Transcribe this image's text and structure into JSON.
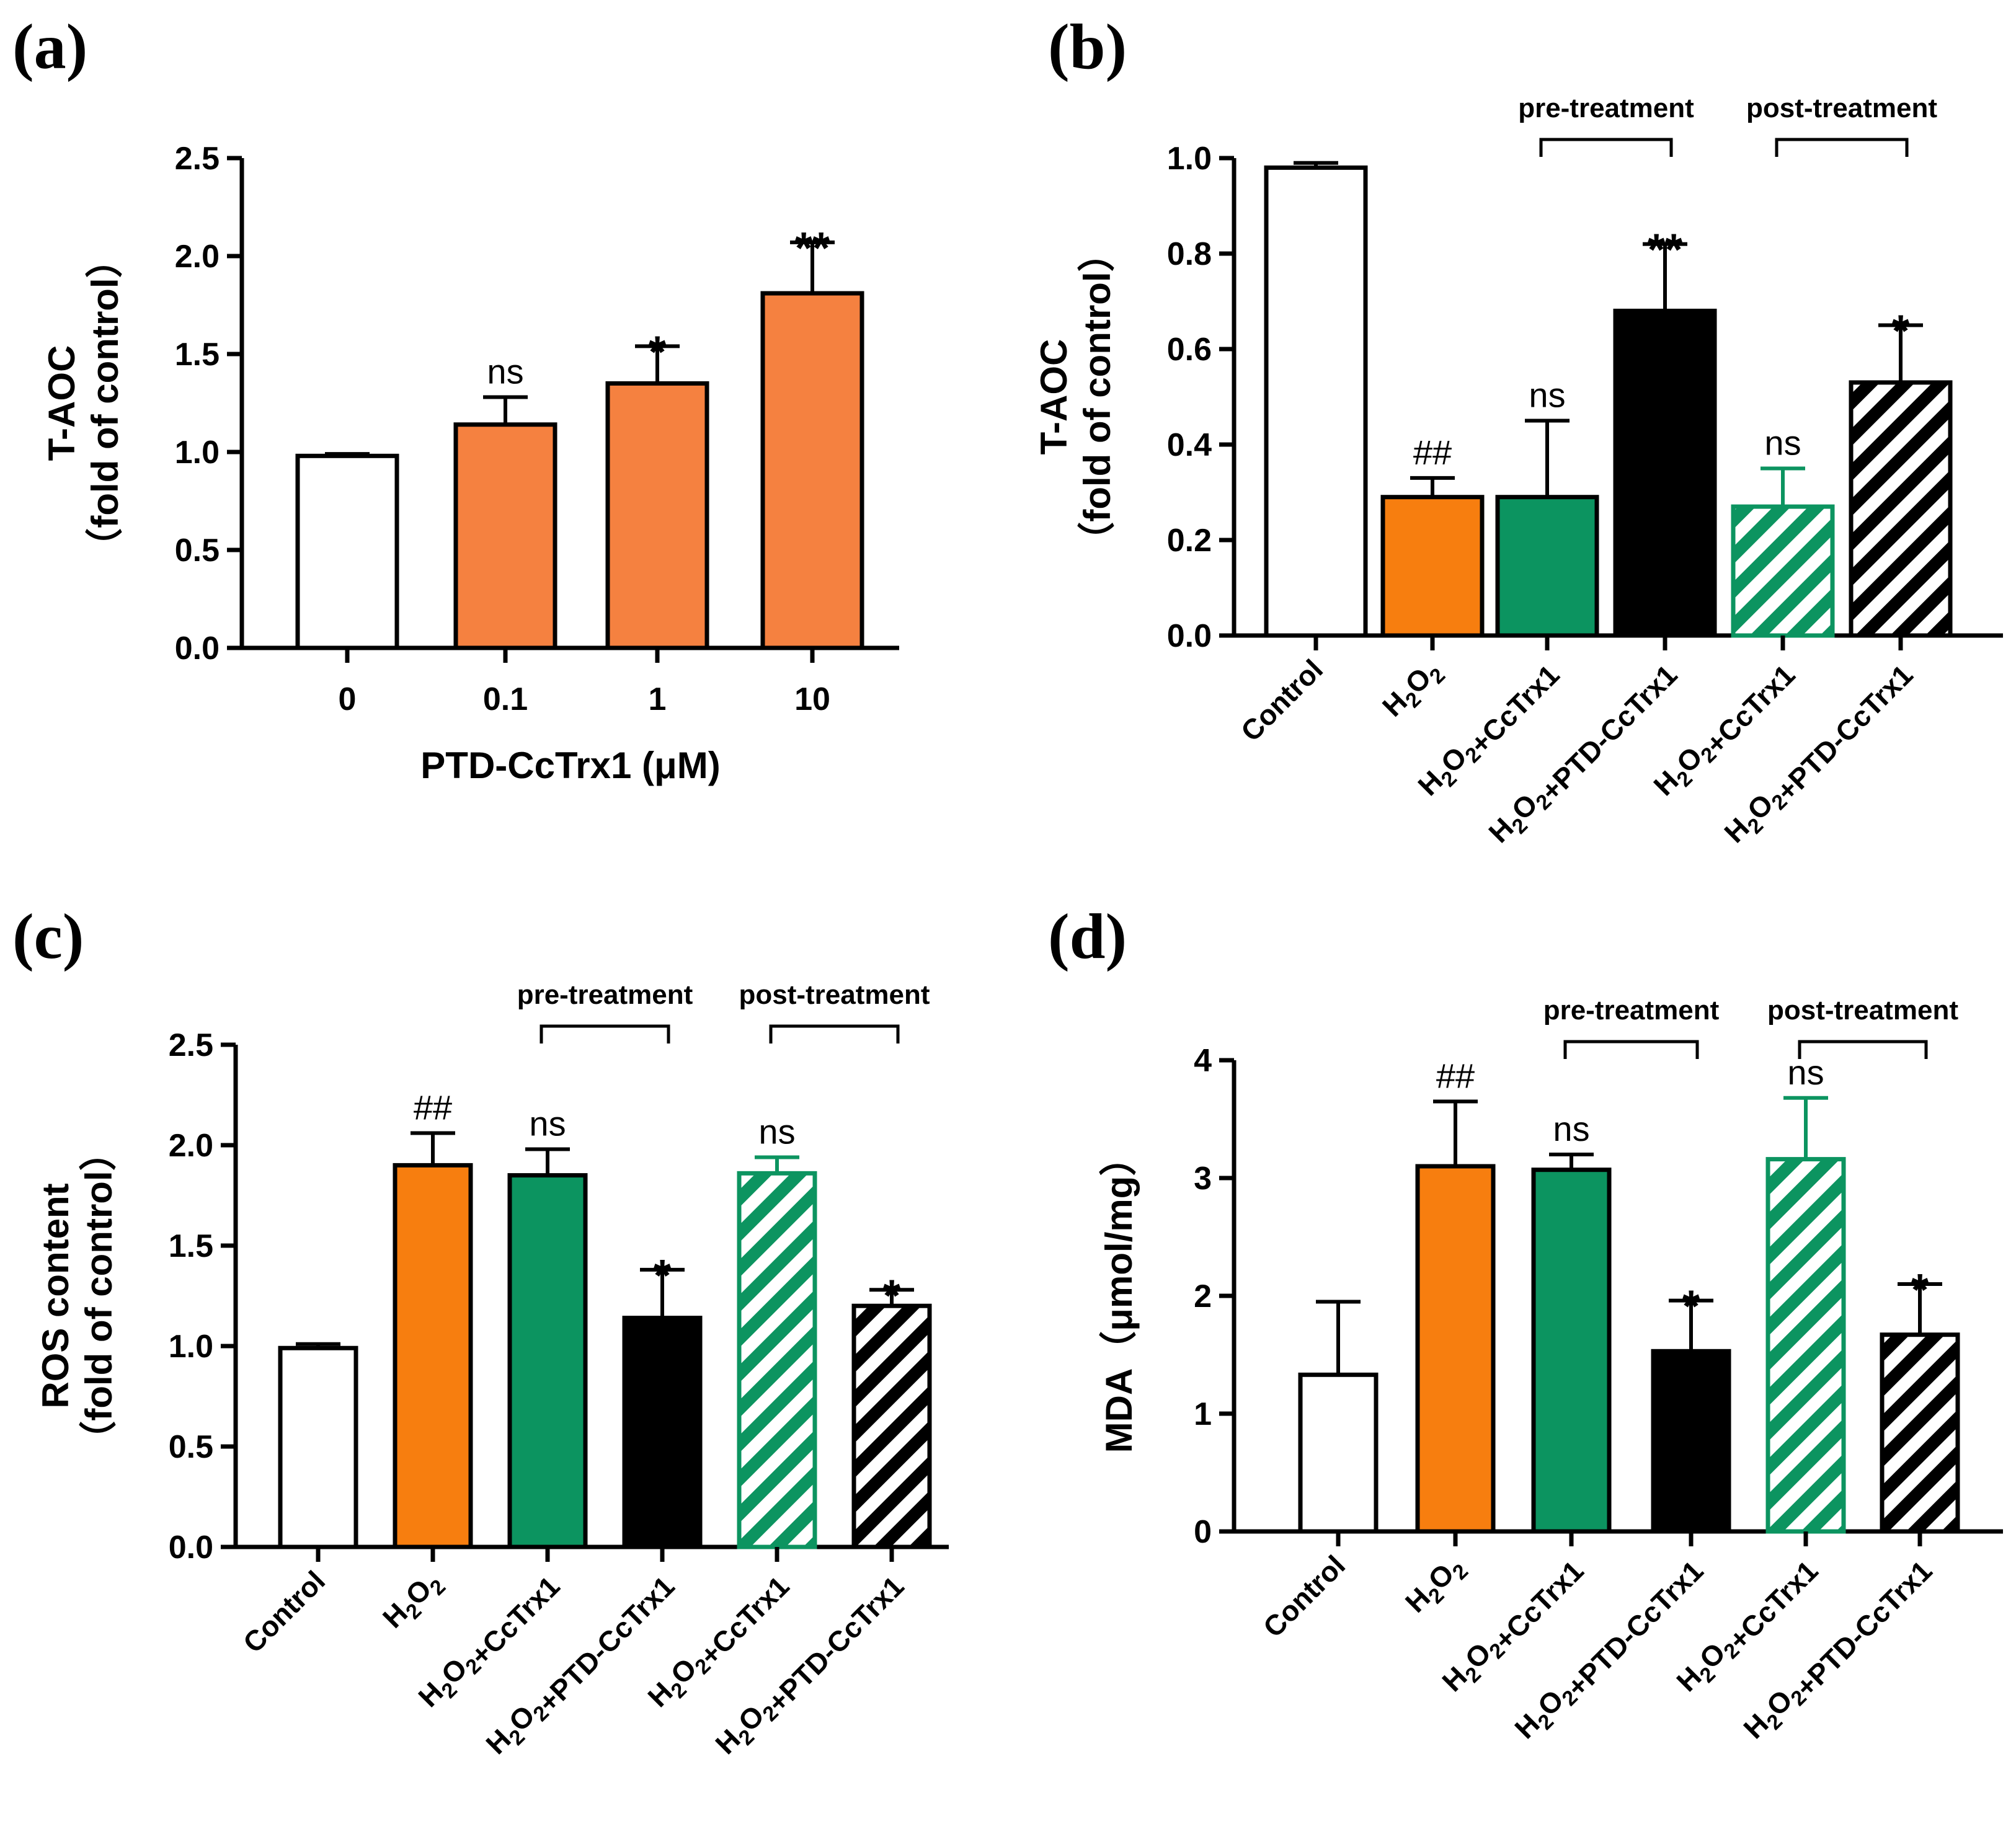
{
  "colors": {
    "orange_a": "#F58140",
    "orange": "#F77E0F",
    "green": "#0C9460",
    "black": "#000000",
    "white": "#FFFFFF"
  },
  "chart_data": [
    {
      "id": "a",
      "panel_label": "(a)",
      "type": "bar",
      "ylabel_line1": "T-AOC",
      "ylabel_line2": "（fold of control）",
      "xlabel": "PTD-CcTrx1 (μM)",
      "ylim": [
        0,
        2.5
      ],
      "yticks": [
        "0.0",
        "0.5",
        "1.0",
        "1.5",
        "2.0",
        "2.5"
      ],
      "categories": [
        "0",
        "0.1",
        "1",
        "10"
      ],
      "values": [
        0.98,
        1.14,
        1.35,
        1.81
      ],
      "errors": [
        0.01,
        0.14,
        0.19,
        0.26
      ],
      "fills": [
        "white",
        "orange_a",
        "orange_a",
        "orange_a"
      ],
      "significance": [
        "",
        "ns",
        "*",
        "**"
      ],
      "groups": []
    },
    {
      "id": "b",
      "panel_label": "(b)",
      "type": "bar",
      "ylabel_line1": "T-AOC",
      "ylabel_line2": "（fold of control）",
      "xlabel": "",
      "ylim": [
        0,
        1.0
      ],
      "yticks": [
        "0.0",
        "0.2",
        "0.4",
        "0.6",
        "0.8",
        "1.0"
      ],
      "categories": [
        "Control",
        "H2O2",
        "H2O2+CcTrx1",
        "H2O2+PTD-CcTrx1",
        "H2O2+CcTrx1",
        "H2O2+PTD-CcTrx1"
      ],
      "values": [
        0.98,
        0.29,
        0.29,
        0.68,
        0.27,
        0.53
      ],
      "errors": [
        0.01,
        0.04,
        0.16,
        0.14,
        0.08,
        0.12
      ],
      "fills": [
        "white",
        "orange",
        "green",
        "black",
        "green-hatch",
        "black-hatch"
      ],
      "significance": [
        "",
        "##",
        "ns",
        "**",
        "ns",
        "*"
      ],
      "groups": [
        {
          "label": "pre-treatment",
          "from": 2,
          "to": 3
        },
        {
          "label": "post-treatment",
          "from": 4,
          "to": 5
        }
      ]
    },
    {
      "id": "c",
      "panel_label": "(c)",
      "type": "bar",
      "ylabel_line1": "ROS content",
      "ylabel_line2": "（fold of control）",
      "xlabel": "",
      "ylim": [
        0,
        2.5
      ],
      "yticks": [
        "0.0",
        "0.5",
        "1.0",
        "1.5",
        "2.0",
        "2.5"
      ],
      "categories": [
        "Control",
        "H2O2",
        "H2O2+CcTrx1",
        "H2O2+PTD-CcTrx1",
        "H2O2+CcTrx1",
        "H2O2+PTD-CcTrx1"
      ],
      "values": [
        0.99,
        1.9,
        1.85,
        1.14,
        1.86,
        1.2
      ],
      "errors": [
        0.02,
        0.16,
        0.13,
        0.24,
        0.08,
        0.08
      ],
      "fills": [
        "white",
        "orange",
        "green",
        "black",
        "green-hatch",
        "black-hatch"
      ],
      "significance": [
        "",
        "##",
        "ns",
        "*",
        "ns",
        "*"
      ],
      "groups": [
        {
          "label": "pre-treatment",
          "from": 2,
          "to": 3
        },
        {
          "label": "post-treatment",
          "from": 4,
          "to": 5
        }
      ]
    },
    {
      "id": "d",
      "panel_label": "(d)",
      "type": "bar",
      "ylabel_line1": "MDA（μmol/mg）",
      "ylabel_line2": "",
      "xlabel": "",
      "ylim": [
        0,
        4
      ],
      "yticks": [
        "0",
        "1",
        "2",
        "3",
        "4"
      ],
      "categories": [
        "Control",
        "H2O2",
        "H2O2+CcTrx1",
        "H2O2+PTD-CcTrx1",
        "H2O2+CcTrx1",
        "H2O2+PTD-CcTrx1"
      ],
      "values": [
        1.33,
        3.1,
        3.07,
        1.53,
        3.16,
        1.67
      ],
      "errors": [
        0.62,
        0.55,
        0.13,
        0.43,
        0.52,
        0.43
      ],
      "fills": [
        "white",
        "orange",
        "green",
        "black",
        "green-hatch",
        "black-hatch"
      ],
      "significance": [
        "",
        "##",
        "ns",
        "*",
        "ns",
        "*"
      ],
      "groups": [
        {
          "label": "pre-treatment",
          "from": 2,
          "to": 3
        },
        {
          "label": "post-treatment",
          "from": 4,
          "to": 5
        }
      ]
    }
  ]
}
